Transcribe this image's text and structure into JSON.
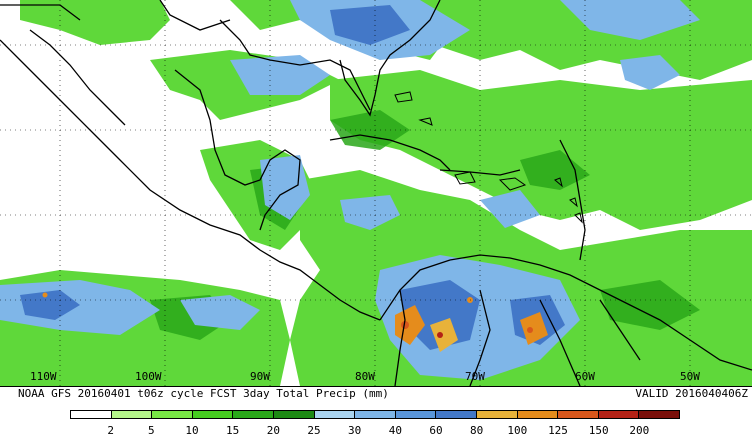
{
  "map": {
    "lon_labels": [
      "110W",
      "100W",
      "90W",
      "80W",
      "70W",
      "60W",
      "50W"
    ],
    "colors": {
      "bg": "#ffffff",
      "c2": "#b5f58a",
      "c5": "#78e645",
      "c10": "#46cc20",
      "c15": "#2aa81a",
      "c20": "#1d8a14",
      "c25": "#a9d4f0",
      "c30": "#7fb6e8",
      "c40": "#5a96db",
      "c60": "#4378c8",
      "c80": "#e8b23a",
      "c100": "#e58c1c",
      "c150": "#d8571c",
      "c200": "#b32216"
    }
  },
  "caption": {
    "left": "NOAA GFS 20160401 t06z cycle FCST 3day Total Precip (mm)",
    "right": "VALID 2016040406Z"
  },
  "legend": {
    "labels": [
      "2",
      "5",
      "10",
      "15",
      "20",
      "25",
      "30",
      "40",
      "60",
      "80",
      "100",
      "125",
      "150",
      "200"
    ],
    "colors": [
      "#ffffff",
      "#b5f58a",
      "#78e645",
      "#46cc20",
      "#2aa81a",
      "#1d8a14",
      "#a9d4f0",
      "#7fb6e8",
      "#5a96db",
      "#4378c8",
      "#e8b23a",
      "#e58c1c",
      "#d8571c",
      "#b32216",
      "#7a0f0a"
    ]
  }
}
